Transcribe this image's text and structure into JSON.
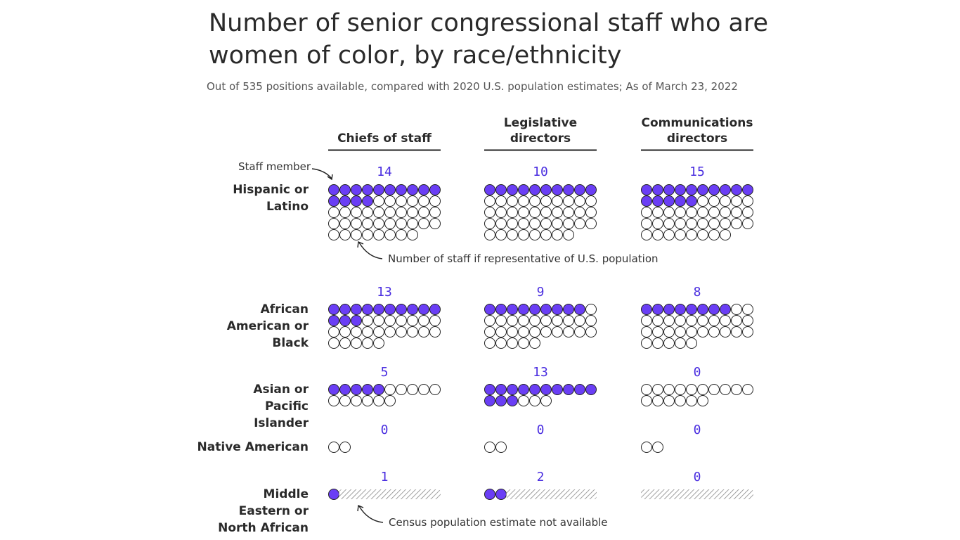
{
  "chart_data": {
    "type": "waffle",
    "title": "Number of senior congressional staff who are women of color, by race/ethnicity",
    "subtitle": "Out of 535 positions available, compared with 2020 U.S. population estimates; As of March 23, 2022",
    "categories": [
      "Hispanic or Latino",
      "African American or Black",
      "Asian or Pacific Islander",
      "Native American",
      "Middle Eastern or North African"
    ],
    "series": [
      {
        "name": "Chiefs of staff",
        "color": "#6a3ef5",
        "values": [
          14,
          13,
          5,
          0,
          1
        ],
        "representative": [
          48,
          35,
          16,
          2,
          null
        ]
      },
      {
        "name": "Legislative directors",
        "color": "#6a3ef5",
        "values": [
          10,
          9,
          13,
          0,
          2
        ],
        "representative": [
          48,
          35,
          16,
          2,
          null
        ]
      },
      {
        "name": "Communications directors",
        "color": "#6a3ef5",
        "values": [
          15,
          8,
          0,
          0,
          0
        ],
        "representative": [
          48,
          35,
          16,
          2,
          null
        ]
      }
    ],
    "annotations": [
      "Staff member",
      "Number of staff if representative of U.S. population",
      "Census population estimate not available"
    ]
  }
}
